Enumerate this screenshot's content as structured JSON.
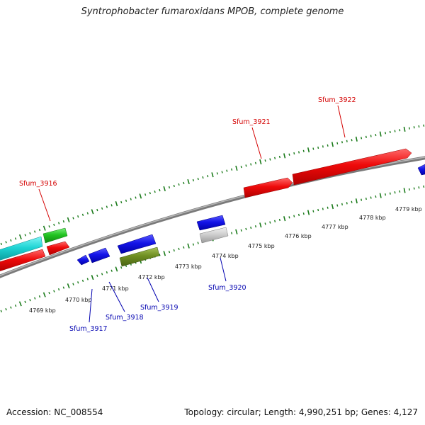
{
  "title": "Syntrophobacter fumaroxidans MPOB, complete genome",
  "footer": {
    "accession": "Accession: NC_008554",
    "summary": "Topology: circular; Length: 4,990,251 bp; Genes: 4,127"
  },
  "colors": {
    "forward_label": "#d40000",
    "reverse_label": "#0000b0",
    "axis": "#8a8a8a",
    "ticks": "#1a7a1a"
  },
  "tick_labels": [
    "4769 kbp",
    "4770 kbp",
    "4771 kbp",
    "4772 kbp",
    "4773 kbp",
    "4774 kbp",
    "4775 kbp",
    "4776 kbp",
    "4777 kbp",
    "4778 kbp",
    "4779 kbp"
  ],
  "gene_labels": [
    {
      "id": "Sfum_3916",
      "strand": "forward"
    },
    {
      "id": "Sfum_3921",
      "strand": "forward"
    },
    {
      "id": "Sfum_3922",
      "strand": "forward"
    },
    {
      "id": "Sfum_3917",
      "strand": "reverse"
    },
    {
      "id": "Sfum_3918",
      "strand": "reverse"
    },
    {
      "id": "Sfum_3919",
      "strand": "reverse"
    },
    {
      "id": "Sfum_3920",
      "strand": "reverse"
    }
  ]
}
